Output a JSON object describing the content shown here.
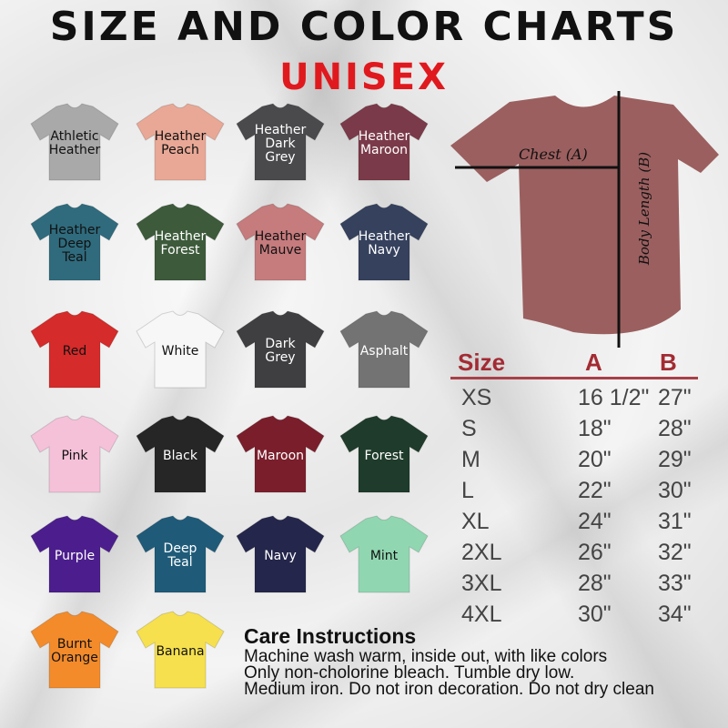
{
  "header": {
    "title": "SIZE AND COLOR CHARTS",
    "subtitle": "UNISEX"
  },
  "colors": [
    {
      "name": "Athletic Heather",
      "hex": "#a9a9aa",
      "text": "#111"
    },
    {
      "name": "Heather Peach",
      "hex": "#e9a896",
      "text": "#111"
    },
    {
      "name": "Heather Dark Grey",
      "hex": "#4a4a4d",
      "text": "#fff"
    },
    {
      "name": "Heather Maroon",
      "hex": "#7b3a49",
      "text": "#fff"
    },
    {
      "name": "Heather Deep Teal",
      "hex": "#2f6b7d",
      "text": "#111"
    },
    {
      "name": "Heather Forest",
      "hex": "#3d5b3b",
      "text": "#fff"
    },
    {
      "name": "Heather Mauve",
      "hex": "#c67b7d",
      "text": "#111"
    },
    {
      "name": "Heather Navy",
      "hex": "#35415d",
      "text": "#fff"
    },
    {
      "name": "Red",
      "hex": "#d52b2a",
      "text": "#111"
    },
    {
      "name": "White",
      "hex": "#f7f7f7",
      "text": "#111"
    },
    {
      "name": "Dark Grey",
      "hex": "#3f3f41",
      "text": "#fff"
    },
    {
      "name": "Asphalt",
      "hex": "#737373",
      "text": "#fff"
    },
    {
      "name": "Pink",
      "hex": "#f5c1d9",
      "text": "#111"
    },
    {
      "name": "Black",
      "hex": "#262626",
      "text": "#fff"
    },
    {
      "name": "Maroon",
      "hex": "#7b1e2b",
      "text": "#fff"
    },
    {
      "name": "Forest",
      "hex": "#1f3b2b",
      "text": "#fff"
    },
    {
      "name": "Purple",
      "hex": "#4c1e8d",
      "text": "#fff"
    },
    {
      "name": "Deep Teal",
      "hex": "#1f5b79",
      "text": "#fff"
    },
    {
      "name": "Navy",
      "hex": "#24264b",
      "text": "#fff"
    },
    {
      "name": "Mint",
      "hex": "#90d7b1",
      "text": "#111"
    },
    {
      "name": "Burnt Orange",
      "hex": "#f38b2b",
      "text": "#111"
    },
    {
      "name": "Banana",
      "hex": "#f6e04e",
      "text": "#111"
    }
  ],
  "diagram": {
    "chest_label": "Chest (A)",
    "length_label": "Body Length (B)",
    "shirt_color": "#9b5f5f"
  },
  "size_table": {
    "headers": [
      "Size",
      "A",
      "B"
    ],
    "rows": [
      [
        "XS",
        "16 1/2\"",
        "27\""
      ],
      [
        "S",
        "18\"",
        "28\""
      ],
      [
        "M",
        "20\"",
        "29\""
      ],
      [
        "L",
        "22\"",
        "30\""
      ],
      [
        "XL",
        "24\"",
        "31\""
      ],
      [
        "2XL",
        "26\"",
        "32\""
      ],
      [
        "3XL",
        "28\"",
        "33\""
      ],
      [
        "4XL",
        "30\"",
        "34\""
      ]
    ]
  },
  "care": {
    "title": "Care Instructions",
    "lines": [
      "Machine wash warm, inside out, with like colors",
      "Only non-cholorine bleach. Tumble dry low.",
      "Medium iron. Do not iron decoration. Do not dry clean"
    ]
  }
}
